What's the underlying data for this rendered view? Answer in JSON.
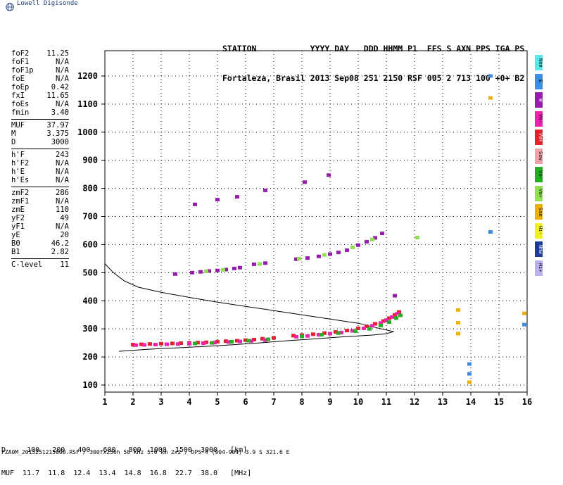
{
  "logo_text": "Lowell Digisonde",
  "header": {
    "line1": "STATION           YYYY DAY   DDD HHMM P1  FFS S AXN PPS IGA PS",
    "line2": "Fortaleza, Brasil 2013 Sep08 251 2150 RSF 005 2 713 100 +0+ B2"
  },
  "params": [
    [
      {
        "k": "foF2",
        "v": "11.25"
      },
      {
        "k": "foF1",
        "v": "N/A"
      },
      {
        "k": "foF1p",
        "v": "N/A"
      },
      {
        "k": "foE",
        "v": "N/A"
      },
      {
        "k": "foEp",
        "v": "0.42"
      },
      {
        "k": "fxI",
        "v": "11.65"
      },
      {
        "k": "foEs",
        "v": "N/A"
      },
      {
        "k": "fmin",
        "v": "3.40"
      }
    ],
    [
      {
        "k": "MUF",
        "v": "37.97"
      },
      {
        "k": "M",
        "v": "3.375"
      },
      {
        "k": "D",
        "v": "3000"
      }
    ],
    [
      {
        "k": "h'F",
        "v": "243"
      },
      {
        "k": "h'F2",
        "v": "N/A"
      },
      {
        "k": "h'E",
        "v": "N/A"
      },
      {
        "k": "h'Es",
        "v": "N/A"
      }
    ],
    [
      {
        "k": "zmF2",
        "v": "286"
      },
      {
        "k": "zmF1",
        "v": "N/A"
      },
      {
        "k": "zmE",
        "v": "110"
      },
      {
        "k": "yF2",
        "v": "49"
      },
      {
        "k": "yF1",
        "v": "N/A"
      },
      {
        "k": "yE",
        "v": "20"
      },
      {
        "k": "B0",
        "v": "46.2"
      },
      {
        "k": "B1",
        "v": "2.82"
      }
    ],
    [
      {
        "k": "C-level",
        "v": "11"
      }
    ]
  ],
  "legend": [
    {
      "label": "Nne",
      "color": "#55e8e8"
    },
    {
      "label": "E",
      "color": "#3a8ee6"
    },
    {
      "label": "W",
      "color": "#9a1bb0"
    },
    {
      "label": "Vo-",
      "color": "#f020b0"
    },
    {
      "label": "Vo+",
      "color": "#e8202a"
    },
    {
      "label": "Ssw",
      "color": "#f4a0a8"
    },
    {
      "label": "Vo-",
      "color": "#20b020"
    },
    {
      "label": "Vo+",
      "color": "#8ee050"
    },
    {
      "label": "Sse",
      "color": "#f0b000"
    },
    {
      "label": "Hi-",
      "color": "#f0f020"
    },
    {
      "label": "Nnw",
      "color": "#1a3c9c"
    },
    {
      "label": "Hi+",
      "color": "#b8b0f0"
    }
  ],
  "bottom_lines": {
    "line1": "D     100   200   400   600   800  1000  1500  3000   [km]",
    "line2": "MUF  11.7  11.8  12.4  13.4  14.8  16.8  22.7  38.0   [MHz]"
  },
  "footer": "FZA0M_2013251215000.RSF / 300fx256h 50 kHz 5.0 km 2x2 / DPS-4 (904-904)   3.9 S 321.6 E",
  "chart_data": {
    "type": "scatter",
    "title": "",
    "xlabel": "",
    "ylabel": "",
    "xlim": [
      1,
      16
    ],
    "ylim": [
      75,
      1290
    ],
    "xticks": [
      1,
      2,
      3,
      4,
      5,
      6,
      7,
      8,
      9,
      10,
      11,
      12,
      13,
      14,
      15,
      16
    ],
    "yticks": [
      100,
      200,
      300,
      400,
      500,
      600,
      700,
      800,
      900,
      1000,
      1100,
      1200
    ],
    "grid": true,
    "profile_curve": [
      [
        1.0,
        532
      ],
      [
        1.3,
        500
      ],
      [
        1.7,
        470
      ],
      [
        2.2,
        448
      ],
      [
        3,
        430
      ],
      [
        4,
        412
      ],
      [
        5,
        395
      ],
      [
        6,
        380
      ],
      [
        7,
        365
      ],
      [
        8,
        350
      ],
      [
        9,
        335
      ],
      [
        10,
        320
      ],
      [
        10.6,
        305
      ],
      [
        11.0,
        296
      ],
      [
        11.25,
        290
      ],
      [
        11.0,
        283
      ],
      [
        10.5,
        278
      ],
      [
        9.5,
        272
      ],
      [
        8.5,
        265
      ],
      [
        7.5,
        258
      ],
      [
        6.5,
        250
      ],
      [
        5.5,
        243
      ],
      [
        4.5,
        237
      ],
      [
        3.5,
        232
      ],
      [
        2.5,
        227
      ],
      [
        1.5,
        220
      ]
    ],
    "series": [
      {
        "color": "#e8202a",
        "points": [
          [
            2.0,
            244
          ],
          [
            2.3,
            245
          ],
          [
            2.6,
            246
          ],
          [
            3.0,
            247
          ],
          [
            3.4,
            248
          ],
          [
            3.7,
            249
          ],
          [
            4.0,
            250
          ],
          [
            4.3,
            251
          ],
          [
            4.6,
            252
          ],
          [
            5.0,
            254
          ],
          [
            5.3,
            256
          ],
          [
            5.7,
            258
          ],
          [
            6.0,
            260
          ],
          [
            6.3,
            262
          ],
          [
            6.6,
            265
          ],
          [
            7.0,
            268
          ],
          [
            7.7,
            276
          ],
          [
            8.0,
            278
          ],
          [
            8.4,
            281
          ],
          [
            8.8,
            285
          ],
          [
            9.2,
            289
          ],
          [
            9.6,
            294
          ],
          [
            10.0,
            302
          ],
          [
            10.3,
            309
          ],
          [
            10.6,
            318
          ],
          [
            10.9,
            328
          ],
          [
            11.1,
            338
          ],
          [
            11.3,
            350
          ],
          [
            11.45,
            360
          ]
        ]
      },
      {
        "color": "#f020b0",
        "points": [
          [
            2.1,
            242
          ],
          [
            2.4,
            243
          ],
          [
            2.8,
            244
          ],
          [
            3.2,
            245
          ],
          [
            3.6,
            246
          ],
          [
            4.0,
            247
          ],
          [
            4.5,
            249
          ],
          [
            4.9,
            251
          ],
          [
            5.4,
            253
          ],
          [
            5.8,
            255
          ],
          [
            6.2,
            257
          ],
          [
            6.7,
            260
          ],
          [
            7.8,
            272
          ],
          [
            8.2,
            275
          ],
          [
            8.6,
            279
          ],
          [
            9.0,
            283
          ],
          [
            9.4,
            287
          ],
          [
            9.8,
            293
          ],
          [
            10.2,
            302
          ],
          [
            10.5,
            311
          ],
          [
            10.8,
            321
          ],
          [
            11.0,
            331
          ],
          [
            11.2,
            342
          ],
          [
            11.4,
            354
          ]
        ]
      },
      {
        "color": "#20b020",
        "points": [
          [
            4.2,
            248
          ],
          [
            4.8,
            250
          ],
          [
            5.5,
            254
          ],
          [
            6.1,
            258
          ],
          [
            6.8,
            263
          ],
          [
            8.0,
            273
          ],
          [
            8.7,
            279
          ],
          [
            9.3,
            285
          ],
          [
            9.9,
            292
          ],
          [
            10.4,
            300
          ],
          [
            10.8,
            312
          ],
          [
            11.1,
            324
          ],
          [
            11.35,
            338
          ],
          [
            11.5,
            348
          ]
        ]
      },
      {
        "color": "#9a1bb0",
        "points": [
          [
            3.5,
            495
          ],
          [
            4.1,
            500
          ],
          [
            4.4,
            503
          ],
          [
            4.7,
            506
          ],
          [
            5.0,
            508
          ],
          [
            5.3,
            511
          ],
          [
            5.6,
            515
          ],
          [
            5.8,
            518
          ],
          [
            6.3,
            530
          ],
          [
            6.7,
            534
          ],
          [
            7.8,
            548
          ],
          [
            8.2,
            552
          ],
          [
            8.6,
            558
          ],
          [
            9.0,
            566
          ],
          [
            9.3,
            572
          ],
          [
            9.6,
            580
          ],
          [
            10.0,
            598
          ],
          [
            10.3,
            610
          ],
          [
            10.6,
            624
          ],
          [
            10.85,
            640
          ],
          [
            4.2,
            743
          ],
          [
            5.0,
            760
          ],
          [
            5.7,
            770
          ],
          [
            6.7,
            793
          ],
          [
            8.1,
            822
          ],
          [
            8.95,
            847
          ],
          [
            11.3,
            418
          ]
        ]
      },
      {
        "color": "#8ee050",
        "points": [
          [
            4.6,
            505
          ],
          [
            5.2,
            510
          ],
          [
            6.5,
            531
          ],
          [
            7.9,
            550
          ],
          [
            8.8,
            563
          ],
          [
            9.8,
            590
          ],
          [
            10.5,
            618
          ],
          [
            12.1,
            625
          ]
        ]
      },
      {
        "color": "#3a8ee6",
        "points": [
          [
            14.7,
            1200
          ],
          [
            14.7,
            645
          ],
          [
            13.95,
            175
          ],
          [
            13.95,
            140
          ],
          [
            15.9,
            315
          ]
        ]
      },
      {
        "color": "#f0b000",
        "points": [
          [
            13.55,
            367
          ],
          [
            13.55,
            322
          ],
          [
            13.55,
            283
          ],
          [
            14.7,
            1122
          ],
          [
            13.95,
            110
          ],
          [
            15.9,
            355
          ]
        ]
      }
    ]
  }
}
